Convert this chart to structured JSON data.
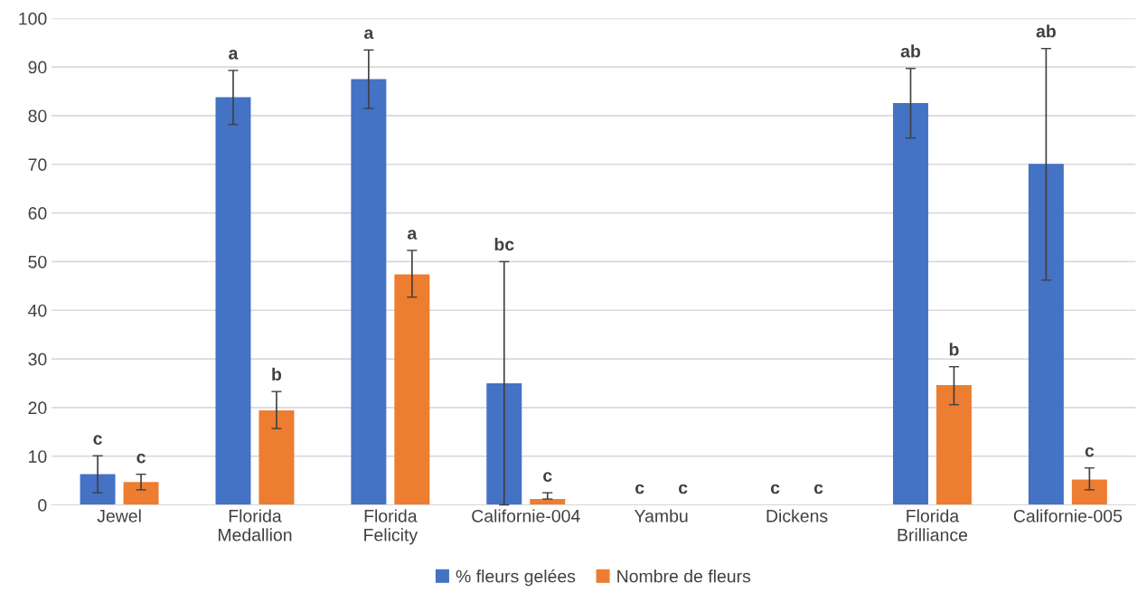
{
  "chart_data": {
    "type": "bar",
    "categories": [
      "Jewel",
      "Florida\nMedallion",
      "Florida\nFelicity",
      "Californie-004",
      "Yambu",
      "Dickens",
      "Florida\nBrilliance",
      "Californie-005"
    ],
    "series": [
      {
        "name": "% fleurs gelées",
        "color": "#4472c4",
        "values": [
          6.3,
          83.8,
          87.5,
          25,
          0,
          0,
          82.6,
          70.1
        ],
        "errors": [
          [
            2.5,
            10.1
          ],
          [
            78.2,
            89.3
          ],
          [
            81.5,
            93.5
          ],
          [
            0,
            50
          ],
          null,
          null,
          [
            75.4,
            89.7
          ],
          [
            46.2,
            93.8
          ]
        ]
      },
      {
        "name": "Nombre de fleurs",
        "color": "#ed7d31",
        "values": [
          4.7,
          19.4,
          47.4,
          1.2,
          0,
          0,
          24.6,
          5.2
        ],
        "errors": [
          [
            3.1,
            6.3
          ],
          [
            15.7,
            23.3
          ],
          [
            42.7,
            52.3
          ],
          [
            1.2,
            2.5
          ],
          null,
          null,
          [
            20.6,
            28.4
          ],
          [
            3.1,
            7.6
          ]
        ]
      }
    ],
    "annotations": [
      "c",
      "c",
      "a",
      "b",
      "a",
      "a",
      "bc",
      "c",
      "c",
      "c",
      "c",
      "c",
      "ab",
      "b",
      "ab",
      "c"
    ],
    "ylim": [
      0,
      100
    ],
    "yticks": [
      0,
      10,
      20,
      30,
      40,
      50,
      60,
      70,
      80,
      90,
      100
    ],
    "grid": "y",
    "legend": "bottom"
  }
}
